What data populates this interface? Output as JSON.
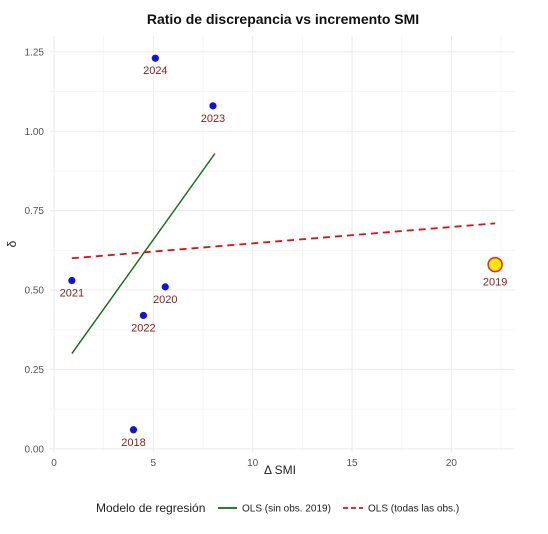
{
  "chart_data": {
    "type": "scatter",
    "title": "Ratio de discrepancia vs incremento SMI",
    "xlabel": "Δ SMI",
    "ylabel": "δ",
    "xlim": [
      -0.2,
      23.2
    ],
    "ylim": [
      -0.01,
      1.3
    ],
    "x_ticks": [
      0,
      5,
      10,
      15,
      20
    ],
    "y_ticks": [
      0.0,
      0.25,
      0.5,
      0.75,
      1.0,
      1.25
    ],
    "x_tick_labels": [
      "0",
      "5",
      "10",
      "15",
      "20"
    ],
    "y_tick_labels": [
      "0.00",
      "0.25",
      "0.50",
      "0.75",
      "1.00",
      "1.25"
    ],
    "grid": true,
    "points": [
      {
        "label": "2018",
        "x": 4.0,
        "y": 0.06,
        "color": "#1010e0"
      },
      {
        "label": "2020",
        "x": 5.6,
        "y": 0.51,
        "color": "#1010e0"
      },
      {
        "label": "2021",
        "x": 0.9,
        "y": 0.53,
        "color": "#1010e0"
      },
      {
        "label": "2022",
        "x": 4.5,
        "y": 0.42,
        "color": "#1010e0"
      },
      {
        "label": "2023",
        "x": 8.0,
        "y": 1.08,
        "color": "#1010e0"
      },
      {
        "label": "2024",
        "x": 5.1,
        "y": 1.23,
        "color": "#1010e0"
      },
      {
        "label": "2019",
        "x": 22.2,
        "y": 0.58,
        "color": "#ffe600",
        "outline": "#e03030",
        "highlight": true
      }
    ],
    "lines": [
      {
        "name": "OLS (sin obs. 2019)",
        "x": [
          0.9,
          8.1
        ],
        "y": [
          0.3,
          0.93
        ],
        "color": "#0a6e0a",
        "style": "solid"
      },
      {
        "name": "OLS (todas las obs.)",
        "x": [
          0.9,
          22.2
        ],
        "y": [
          0.6,
          0.71
        ],
        "color": "#e01010",
        "style": "dashed"
      }
    ],
    "legend": {
      "title": "Modelo de regresión",
      "position": "bottom"
    }
  }
}
